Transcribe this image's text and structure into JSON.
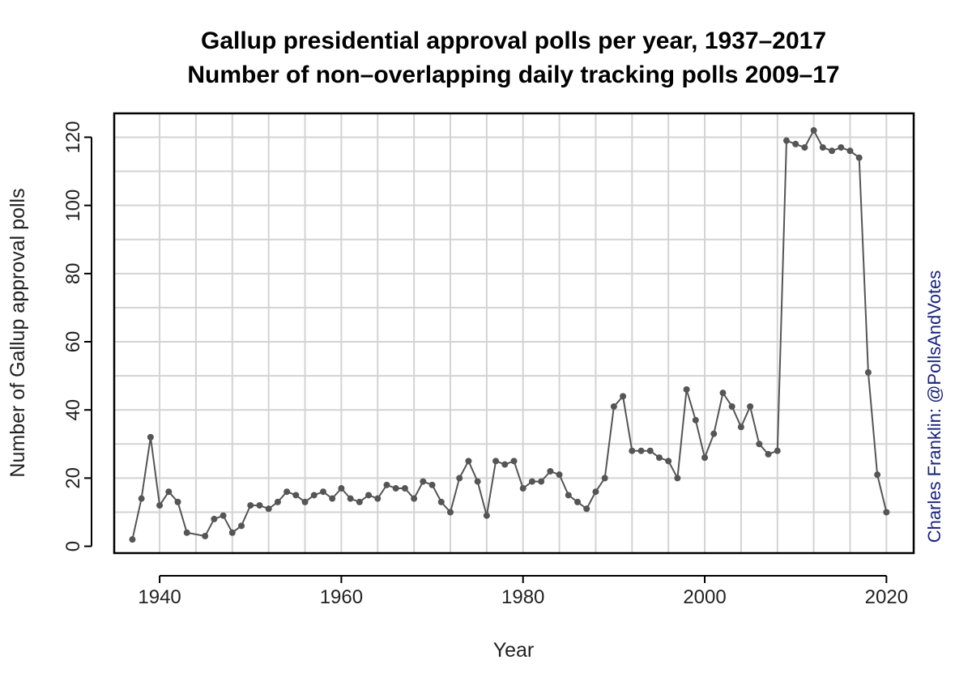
{
  "chart_data": {
    "type": "line",
    "title": "Gallup presidential approval polls per year, 1937–2017",
    "subtitle": "Number of non–overlapping daily tracking polls 2009–17",
    "xlabel": "Year",
    "ylabel": "Number of Gallup approval polls",
    "credit": "Charles Franklin: @PollsAndVotes",
    "xlim": [
      1935,
      2023
    ],
    "ylim": [
      -2,
      127
    ],
    "x_ticks": [
      1940,
      1960,
      1980,
      2000,
      2020
    ],
    "y_ticks": [
      0,
      20,
      40,
      60,
      80,
      100,
      120
    ],
    "x_grid": [
      1935,
      1940,
      1944,
      1948,
      1952,
      1956,
      1960,
      1964,
      1968,
      1972,
      1976,
      1980,
      1984,
      1988,
      1992,
      1996,
      2000,
      2004,
      2008,
      2012,
      2016,
      2020
    ],
    "y_grid": [
      10,
      20,
      30,
      40,
      50,
      60,
      70,
      80,
      90,
      100,
      110,
      120
    ],
    "grid": true,
    "series_color": "#555555",
    "credit_color": "#1a237e",
    "series": [
      {
        "x": [
          1937,
          1938,
          1939,
          1940,
          1941,
          1942,
          1943,
          1945,
          1946,
          1947,
          1948,
          1949,
          1950,
          1951,
          1952,
          1953,
          1954,
          1955,
          1956,
          1957,
          1958,
          1959,
          1960,
          1961,
          1962,
          1963,
          1964,
          1965,
          1966,
          1967,
          1968,
          1969,
          1970,
          1971,
          1972,
          1973,
          1974,
          1975,
          1976,
          1977,
          1978,
          1979,
          1980,
          1981,
          1982,
          1983,
          1984,
          1985,
          1986,
          1987,
          1988,
          1989,
          1990,
          1991,
          1992,
          1993,
          1994,
          1995,
          1996,
          1997,
          1998,
          1999,
          2000,
          2001,
          2002,
          2003,
          2004,
          2005,
          2006,
          2007,
          2008,
          2009,
          2010,
          2011,
          2012,
          2013,
          2014,
          2015,
          2016,
          2017,
          2018,
          2019,
          2020
        ],
        "y": [
          2,
          14,
          32,
          12,
          16,
          13,
          4,
          3,
          8,
          9,
          4,
          6,
          12,
          12,
          11,
          13,
          16,
          15,
          13,
          15,
          16,
          14,
          17,
          14,
          13,
          15,
          14,
          18,
          17,
          17,
          14,
          19,
          18,
          13,
          10,
          20,
          25,
          19,
          9,
          25,
          24,
          25,
          17,
          19,
          19,
          22,
          21,
          15,
          13,
          11,
          16,
          20,
          41,
          44,
          28,
          28,
          28,
          26,
          25,
          20,
          46,
          37,
          26,
          33,
          45,
          41,
          35,
          41,
          30,
          27,
          28,
          119,
          118,
          117,
          122,
          117,
          116,
          117,
          116,
          114,
          51,
          21,
          10
        ]
      }
    ]
  }
}
